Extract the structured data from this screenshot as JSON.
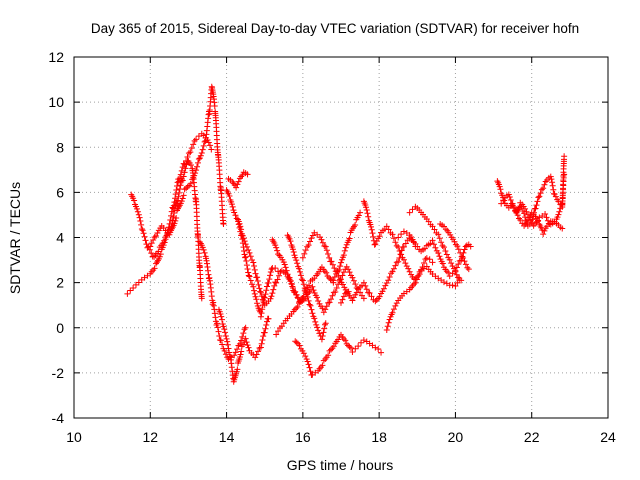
{
  "chart_data": {
    "type": "scatter",
    "title": "Day 365 of 2015, Sidereal Day-to-day VTEC variation (SDTVAR) for receiver hofn",
    "xlabel": "GPS time / hours",
    "ylabel": "SDTVAR / TECUs",
    "xlim": [
      10,
      24
    ],
    "ylim": [
      -4,
      12
    ],
    "xticks": [
      10,
      12,
      14,
      16,
      18,
      20,
      22,
      24
    ],
    "yticks": [
      -4,
      -2,
      0,
      2,
      4,
      6,
      8,
      10,
      12
    ],
    "grid": true,
    "legend": "none",
    "marker": "+",
    "series_color": "#ff0000",
    "tracks": [
      [
        [
          11.4,
          1.5
        ],
        [
          11.55,
          1.7
        ],
        [
          11.7,
          1.9
        ],
        [
          11.85,
          2.1
        ],
        [
          12.0,
          2.3
        ],
        [
          12.15,
          2.8
        ],
        [
          12.3,
          3.5
        ],
        [
          12.45,
          4.3
        ],
        [
          12.6,
          5.4
        ],
        [
          12.75,
          6.6
        ],
        [
          12.9,
          7.3
        ],
        [
          13.05,
          7.8
        ],
        [
          13.2,
          8.3
        ],
        [
          13.35,
          8.5
        ],
        [
          13.5,
          8.2
        ],
        [
          13.6,
          7.9
        ]
      ],
      [
        [
          11.5,
          5.9
        ],
        [
          11.6,
          5.4
        ],
        [
          11.7,
          4.9
        ],
        [
          11.8,
          4.2
        ],
        [
          11.95,
          3.5
        ],
        [
          12.1,
          3.1
        ],
        [
          12.25,
          3.6
        ],
        [
          12.4,
          4.1
        ],
        [
          12.55,
          4.6
        ],
        [
          12.7,
          5.6
        ],
        [
          12.85,
          6.6
        ],
        [
          13.0,
          7.4
        ],
        [
          13.1,
          7.0
        ],
        [
          13.2,
          5.6
        ],
        [
          13.25,
          4.0
        ],
        [
          13.3,
          2.6
        ],
        [
          13.35,
          1.3
        ]
      ],
      [
        [
          12.0,
          3.6
        ],
        [
          12.15,
          4.0
        ],
        [
          12.3,
          4.4
        ],
        [
          12.5,
          4.0
        ],
        [
          12.7,
          5.1
        ],
        [
          12.9,
          6.1
        ],
        [
          13.1,
          6.6
        ],
        [
          13.3,
          7.6
        ],
        [
          13.45,
          8.4
        ],
        [
          13.55,
          9.6
        ],
        [
          13.62,
          10.7
        ],
        [
          13.7,
          9.6
        ],
        [
          13.78,
          7.6
        ],
        [
          13.85,
          6.1
        ],
        [
          13.92,
          4.6
        ]
      ],
      [
        [
          13.3,
          3.8
        ],
        [
          13.45,
          3.1
        ],
        [
          13.55,
          2.1
        ],
        [
          13.65,
          1.0
        ],
        [
          13.75,
          0.1
        ],
        [
          13.85,
          -0.6
        ],
        [
          13.95,
          -1.0
        ],
        [
          14.05,
          -1.3
        ],
        [
          14.2,
          -1.1
        ],
        [
          14.35,
          -0.6
        ],
        [
          14.5,
          0.0
        ]
      ],
      [
        [
          13.8,
          0.8
        ],
        [
          13.9,
          0.1
        ],
        [
          14.0,
          -0.6
        ],
        [
          14.1,
          -1.4
        ],
        [
          14.2,
          -2.4
        ],
        [
          14.3,
          -1.6
        ],
        [
          14.4,
          -0.8
        ],
        [
          14.5,
          -0.4
        ],
        [
          14.6,
          -0.9
        ],
        [
          14.75,
          -1.2
        ],
        [
          14.9,
          -0.8
        ],
        [
          15.0,
          -0.2
        ],
        [
          15.1,
          0.4
        ]
      ],
      [
        [
          14.0,
          6.1
        ],
        [
          14.1,
          5.6
        ],
        [
          14.2,
          5.0
        ],
        [
          14.3,
          4.6
        ],
        [
          14.4,
          4.0
        ],
        [
          14.5,
          3.1
        ],
        [
          14.6,
          2.3
        ],
        [
          14.7,
          1.9
        ],
        [
          14.8,
          1.2
        ],
        [
          14.9,
          0.6
        ],
        [
          15.0,
          1.4
        ],
        [
          15.1,
          2.0
        ],
        [
          15.2,
          2.6
        ],
        [
          15.35,
          2.5
        ]
      ],
      [
        [
          14.05,
          6.6
        ],
        [
          14.15,
          6.4
        ],
        [
          14.25,
          6.1
        ],
        [
          14.35,
          6.5
        ],
        [
          14.45,
          6.8
        ],
        [
          14.55,
          6.8
        ]
      ],
      [
        [
          14.3,
          4.8
        ],
        [
          14.4,
          4.1
        ],
        [
          14.5,
          3.6
        ],
        [
          14.6,
          3.2
        ],
        [
          14.7,
          2.8
        ],
        [
          14.8,
          2.2
        ],
        [
          14.9,
          1.6
        ],
        [
          15.0,
          1.1
        ],
        [
          15.15,
          1.4
        ],
        [
          15.3,
          2.1
        ],
        [
          15.45,
          2.6
        ],
        [
          15.6,
          2.3
        ],
        [
          15.75,
          1.6
        ],
        [
          15.9,
          1.1
        ]
      ],
      [
        [
          15.2,
          3.9
        ],
        [
          15.35,
          3.2
        ],
        [
          15.5,
          2.8
        ],
        [
          15.65,
          2.1
        ],
        [
          15.8,
          1.5
        ],
        [
          15.95,
          1.1
        ],
        [
          16.1,
          1.5
        ],
        [
          16.25,
          1.9
        ],
        [
          16.4,
          1.3
        ],
        [
          16.55,
          0.8
        ],
        [
          16.7,
          1.2
        ],
        [
          16.85,
          1.6
        ],
        [
          17.0,
          2.1
        ],
        [
          17.15,
          2.6
        ],
        [
          17.3,
          2.1
        ],
        [
          17.45,
          1.6
        ],
        [
          17.6,
          1.3
        ]
      ],
      [
        [
          15.6,
          4.1
        ],
        [
          15.7,
          3.6
        ],
        [
          15.8,
          3.0
        ],
        [
          15.9,
          2.5
        ],
        [
          16.0,
          2.0
        ],
        [
          16.1,
          1.5
        ],
        [
          16.2,
          1.0
        ],
        [
          16.3,
          0.5
        ],
        [
          16.4,
          0.0
        ],
        [
          16.5,
          -0.4
        ],
        [
          16.6,
          0.2
        ]
      ],
      [
        [
          15.8,
          -0.6
        ],
        [
          15.95,
          -1.0
        ],
        [
          16.1,
          -1.5
        ],
        [
          16.25,
          -2.2
        ],
        [
          16.4,
          -2.0
        ],
        [
          16.55,
          -1.5
        ],
        [
          16.7,
          -1.0
        ],
        [
          16.85,
          -0.6
        ],
        [
          17.0,
          -0.2
        ],
        [
          17.15,
          -0.6
        ],
        [
          17.3,
          -1.0
        ],
        [
          17.45,
          -0.8
        ],
        [
          17.6,
          -0.6
        ],
        [
          17.75,
          -0.8
        ],
        [
          17.9,
          -1.0
        ],
        [
          18.05,
          -1.1
        ]
      ],
      [
        [
          15.3,
          -0.3
        ],
        [
          15.45,
          0.0
        ],
        [
          15.6,
          0.3
        ],
        [
          15.75,
          0.6
        ],
        [
          15.9,
          1.0
        ],
        [
          16.05,
          1.6
        ],
        [
          16.2,
          2.1
        ],
        [
          16.35,
          2.4
        ],
        [
          16.5,
          2.8
        ],
        [
          16.65,
          2.4
        ],
        [
          16.8,
          2.0
        ]
      ],
      [
        [
          16.0,
          3.1
        ],
        [
          16.15,
          3.6
        ],
        [
          16.3,
          4.1
        ],
        [
          16.45,
          3.9
        ],
        [
          16.6,
          3.5
        ],
        [
          16.75,
          2.9
        ],
        [
          16.9,
          2.5
        ],
        [
          17.05,
          2.0
        ],
        [
          17.2,
          1.6
        ]
      ],
      [
        [
          16.8,
          2.1
        ],
        [
          16.95,
          2.5
        ],
        [
          17.1,
          3.3
        ],
        [
          17.25,
          4.1
        ],
        [
          17.4,
          4.7
        ],
        [
          17.5,
          5.1
        ]
      ],
      [
        [
          17.0,
          1.1
        ],
        [
          17.15,
          1.5
        ],
        [
          17.3,
          1.1
        ],
        [
          17.45,
          1.6
        ],
        [
          17.6,
          1.9
        ],
        [
          17.75,
          1.5
        ],
        [
          17.9,
          1.2
        ],
        [
          18.05,
          1.6
        ],
        [
          18.2,
          2.1
        ],
        [
          18.35,
          2.6
        ],
        [
          18.5,
          3.0
        ],
        [
          18.65,
          3.6
        ],
        [
          18.8,
          3.9
        ],
        [
          18.95,
          3.6
        ]
      ],
      [
        [
          17.6,
          5.6
        ],
        [
          17.75,
          4.6
        ],
        [
          17.9,
          3.6
        ],
        [
          18.05,
          4.1
        ],
        [
          18.2,
          4.4
        ],
        [
          18.35,
          4.1
        ],
        [
          18.5,
          3.6
        ],
        [
          18.65,
          3.1
        ],
        [
          18.8,
          2.6
        ],
        [
          18.95,
          2.1
        ],
        [
          19.1,
          2.6
        ],
        [
          19.25,
          3.1
        ],
        [
          19.4,
          2.9
        ]
      ],
      [
        [
          18.2,
          -0.1
        ],
        [
          18.35,
          0.6
        ],
        [
          18.5,
          1.1
        ],
        [
          18.65,
          1.4
        ],
        [
          18.8,
          1.6
        ],
        [
          18.95,
          2.1
        ],
        [
          19.1,
          2.6
        ],
        [
          19.25,
          2.8
        ],
        [
          19.4,
          2.5
        ],
        [
          19.55,
          2.3
        ],
        [
          19.7,
          2.1
        ],
        [
          19.85,
          1.9
        ],
        [
          20.0,
          1.8
        ],
        [
          20.15,
          2.1
        ]
      ],
      [
        [
          18.8,
          5.1
        ],
        [
          18.95,
          5.3
        ],
        [
          19.1,
          5.0
        ],
        [
          19.25,
          4.7
        ],
        [
          19.4,
          4.4
        ],
        [
          19.55,
          4.1
        ],
        [
          19.7,
          3.6
        ],
        [
          19.85,
          3.1
        ],
        [
          20.0,
          2.6
        ],
        [
          20.1,
          2.2
        ]
      ],
      [
        [
          18.5,
          4.0
        ],
        [
          18.65,
          4.2
        ],
        [
          18.8,
          4.0
        ],
        [
          18.95,
          3.6
        ],
        [
          19.1,
          3.3
        ],
        [
          19.25,
          3.6
        ],
        [
          19.4,
          3.9
        ],
        [
          19.55,
          3.4
        ],
        [
          19.7,
          2.8
        ],
        [
          19.85,
          2.4
        ],
        [
          20.0,
          2.6
        ],
        [
          20.15,
          3.0
        ],
        [
          20.3,
          3.6
        ],
        [
          20.4,
          3.6
        ]
      ],
      [
        [
          19.6,
          4.6
        ],
        [
          19.75,
          4.3
        ],
        [
          19.9,
          3.9
        ],
        [
          20.05,
          3.5
        ],
        [
          20.2,
          3.0
        ],
        [
          20.35,
          2.6
        ]
      ],
      [
        [
          21.1,
          6.5
        ],
        [
          21.2,
          5.9
        ],
        [
          21.3,
          5.4
        ],
        [
          21.4,
          5.2
        ],
        [
          21.5,
          5.4
        ],
        [
          21.6,
          5.1
        ],
        [
          21.7,
          4.8
        ],
        [
          21.8,
          4.6
        ],
        [
          21.9,
          4.9
        ],
        [
          22.0,
          5.2
        ],
        [
          22.1,
          5.0
        ],
        [
          22.2,
          4.6
        ],
        [
          22.3,
          4.1
        ],
        [
          22.4,
          4.4
        ],
        [
          22.5,
          4.6
        ],
        [
          22.6,
          4.6
        ],
        [
          22.7,
          4.5
        ],
        [
          22.8,
          4.4
        ]
      ],
      [
        [
          21.2,
          5.5
        ],
        [
          21.3,
          5.7
        ],
        [
          21.4,
          5.8
        ],
        [
          21.5,
          5.3
        ],
        [
          21.6,
          5.0
        ],
        [
          21.7,
          5.5
        ],
        [
          21.8,
          5.1
        ],
        [
          21.9,
          4.6
        ],
        [
          22.0,
          4.8
        ],
        [
          22.1,
          5.4
        ],
        [
          22.2,
          5.9
        ],
        [
          22.3,
          6.2
        ],
        [
          22.4,
          6.5
        ],
        [
          22.5,
          6.6
        ],
        [
          22.6,
          5.8
        ],
        [
          22.7,
          5.5
        ],
        [
          22.8,
          5.3
        ],
        [
          22.85,
          7.6
        ]
      ],
      [
        [
          21.6,
          5.1
        ],
        [
          21.75,
          5.4
        ],
        [
          21.9,
          4.9
        ],
        [
          22.05,
          4.4
        ],
        [
          22.2,
          4.8
        ],
        [
          22.35,
          5.0
        ],
        [
          22.5,
          4.6
        ],
        [
          22.65,
          4.9
        ],
        [
          22.8,
          5.6
        ],
        [
          22.85,
          6.8
        ]
      ]
    ]
  }
}
